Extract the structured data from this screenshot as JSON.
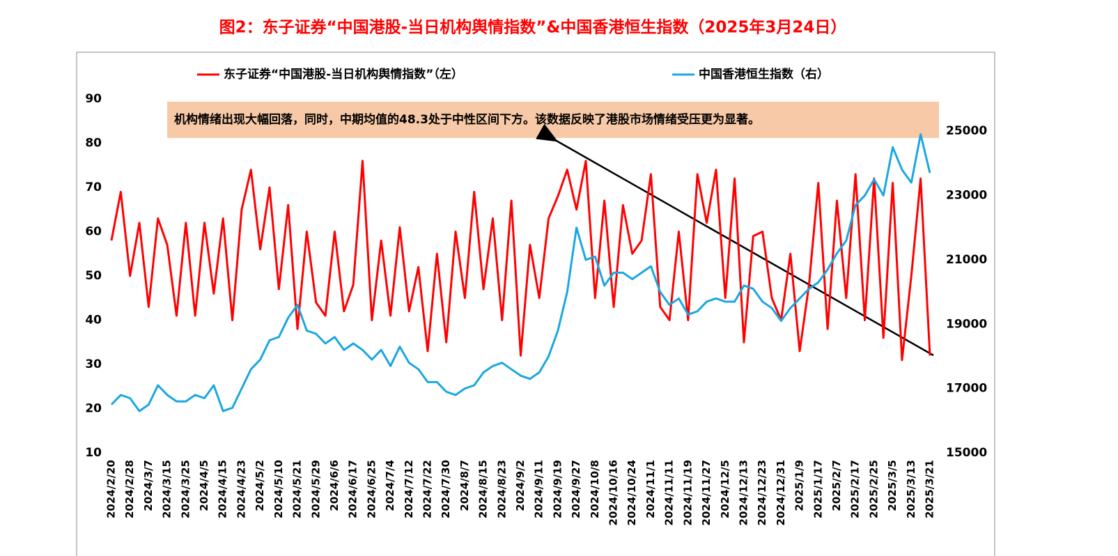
{
  "chart_data": {
    "type": "line",
    "title": "图2：东子证券“中国港股-当日机构舆情指数”&中国香港恒生指数（2025年3月24日）",
    "annotation": "机构情绪出现大幅回落，同时，中期均值的48.3处于中性区间下方。该数据反映了港股市场情绪受压更为显著。",
    "categories": [
      "2024/2/20",
      null,
      "2024/2/28",
      null,
      "2024/3/7",
      null,
      "2024/3/15",
      null,
      "2024/3/25",
      null,
      "2024/4/5",
      null,
      "2024/4/15",
      null,
      "2024/4/23",
      null,
      "2024/5/2",
      null,
      "2024/5/10",
      null,
      "2024/5/21",
      null,
      "2024/5/29",
      null,
      "2024/6/6",
      null,
      "2024/6/17",
      null,
      "2024/6/25",
      null,
      "2024/7/4",
      null,
      "2024/7/12",
      null,
      "2024/7/22",
      null,
      "2024/7/30",
      null,
      "2024/8/7",
      null,
      "2024/8/15",
      null,
      "2024/8/23",
      null,
      "2024/9/2",
      null,
      "2024/9/11",
      null,
      "2024/9/19",
      null,
      "2024/9/27",
      null,
      "2024/10/8",
      null,
      "2024/10/16",
      null,
      "2024/10/24",
      null,
      "2024/11/1",
      null,
      "2024/11/11",
      null,
      "2024/11/19",
      null,
      "2024/11/27",
      null,
      "2024/12/5",
      null,
      "2024/12/13",
      null,
      "2024/12/23",
      null,
      "2024/12/31",
      null,
      "2025/1/9",
      null,
      "2025/1/17",
      null,
      "2025/2/7",
      null,
      "2025/2/17",
      null,
      "2025/2/25",
      null,
      "2025/3/5",
      null,
      "2025/3/13",
      null,
      "2025/3/21"
    ],
    "series": [
      {
        "name": "东子证券“中国港股-当日机构舆情指数”（左）",
        "color": "#ff0000",
        "values": [
          58,
          69,
          50,
          62,
          43,
          63,
          57,
          41,
          62,
          41,
          62,
          46,
          63,
          40,
          65,
          74,
          56,
          70,
          47,
          66,
          38,
          60,
          44,
          41,
          60,
          42,
          48,
          76,
          40,
          58,
          41,
          61,
          42,
          52,
          33,
          55,
          35,
          60,
          45,
          69,
          47,
          63,
          40,
          67,
          32,
          57,
          45,
          63,
          68,
          74,
          65,
          76,
          45,
          67,
          43,
          66,
          55,
          58,
          73,
          43,
          40,
          60,
          40,
          73,
          62,
          74,
          45,
          72,
          35,
          59,
          60,
          45,
          40,
          55,
          33,
          48,
          71,
          38,
          67,
          45,
          73,
          40,
          72,
          36,
          71,
          31,
          50,
          72,
          32
        ]
      },
      {
        "name": "中国香港恒生指数（右）",
        "color": "#1aa7e0",
        "axis": "y2",
        "values": [
          16500,
          16800,
          16700,
          16300,
          16500,
          17100,
          16800,
          16600,
          16600,
          16800,
          16700,
          17100,
          16300,
          16400,
          17000,
          17600,
          17900,
          18500,
          18600,
          19200,
          19600,
          18800,
          18700,
          18400,
          18600,
          18200,
          18400,
          18200,
          17900,
          18200,
          17700,
          18300,
          17800,
          17600,
          17200,
          17200,
          16900,
          16800,
          17000,
          17100,
          17500,
          17700,
          17800,
          17600,
          17400,
          17300,
          17500,
          18000,
          18800,
          20000,
          22000,
          21000,
          21100,
          20200,
          20600,
          20600,
          20400,
          20600,
          20800,
          20000,
          19600,
          19800,
          19300,
          19400,
          19700,
          19800,
          19700,
          19700,
          20200,
          20100,
          19700,
          19500,
          19100,
          19500,
          19800,
          20100,
          20300,
          20700,
          21200,
          21600,
          22700,
          23000,
          23500,
          23000,
          24500,
          23800,
          23400,
          24900,
          23700
        ]
      }
    ],
    "ylim": [
      10,
      90
    ],
    "yticks": [
      10,
      20,
      30,
      40,
      50,
      60,
      70,
      80,
      90
    ],
    "y2lim": [
      15000,
      26000
    ],
    "y2ticks": [
      15000,
      17000,
      19000,
      21000,
      23000,
      25000
    ]
  }
}
